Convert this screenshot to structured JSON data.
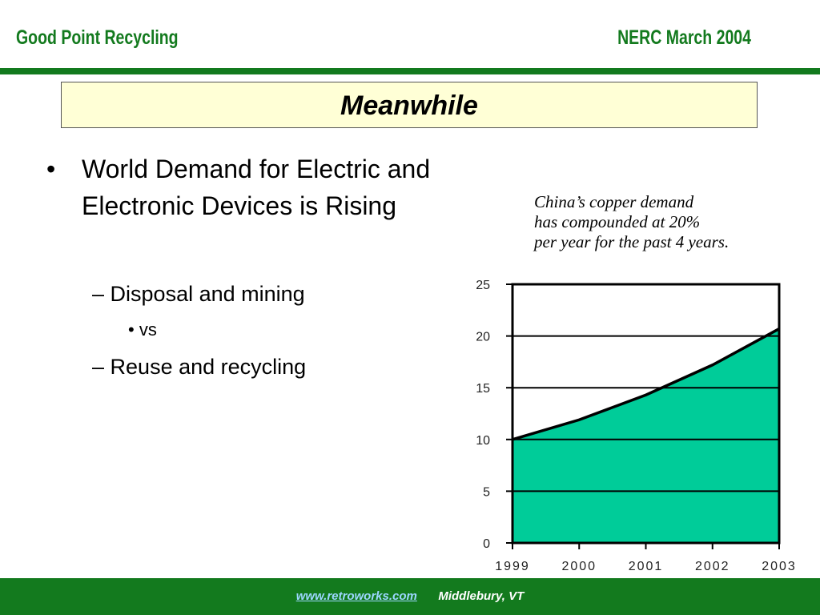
{
  "header": {
    "left": "Good Point Recycling",
    "right": "NERC March 2004"
  },
  "title": "Meanwhile",
  "bullets": {
    "main_marker": "•",
    "main": "World Demand for Electric and Electronic Devices is Rising",
    "dash_marker": "–",
    "sub_dot_marker": "•",
    "sub1": "Disposal and mining",
    "sub2": "vs",
    "sub3": "Reuse and recycling"
  },
  "caption": {
    "line1": "China’s copper demand",
    "line2": "has compounded at 20%",
    "line3": "per year for the past 4 years."
  },
  "chart_data": {
    "type": "area",
    "x": [
      "1999",
      "2000",
      "2001",
      "2002",
      "2003"
    ],
    "series": [
      {
        "values": [
          10.0,
          11.9,
          14.3,
          17.2,
          20.7
        ]
      }
    ],
    "yticks": [
      "0",
      "5",
      "10",
      "15",
      "20",
      "25"
    ],
    "ylim": [
      0,
      25
    ],
    "title": "",
    "xlabel": "",
    "ylabel": "",
    "grid": true,
    "colors": {
      "fill": "#00cc99",
      "line": "#000000"
    }
  },
  "footer": {
    "link": "www.retroworks.com",
    "location": "Middlebury, VT"
  },
  "colors": {
    "brand_green": "#137a1e",
    "title_fill": "#ffffd6",
    "link": "#9dd7ff"
  }
}
